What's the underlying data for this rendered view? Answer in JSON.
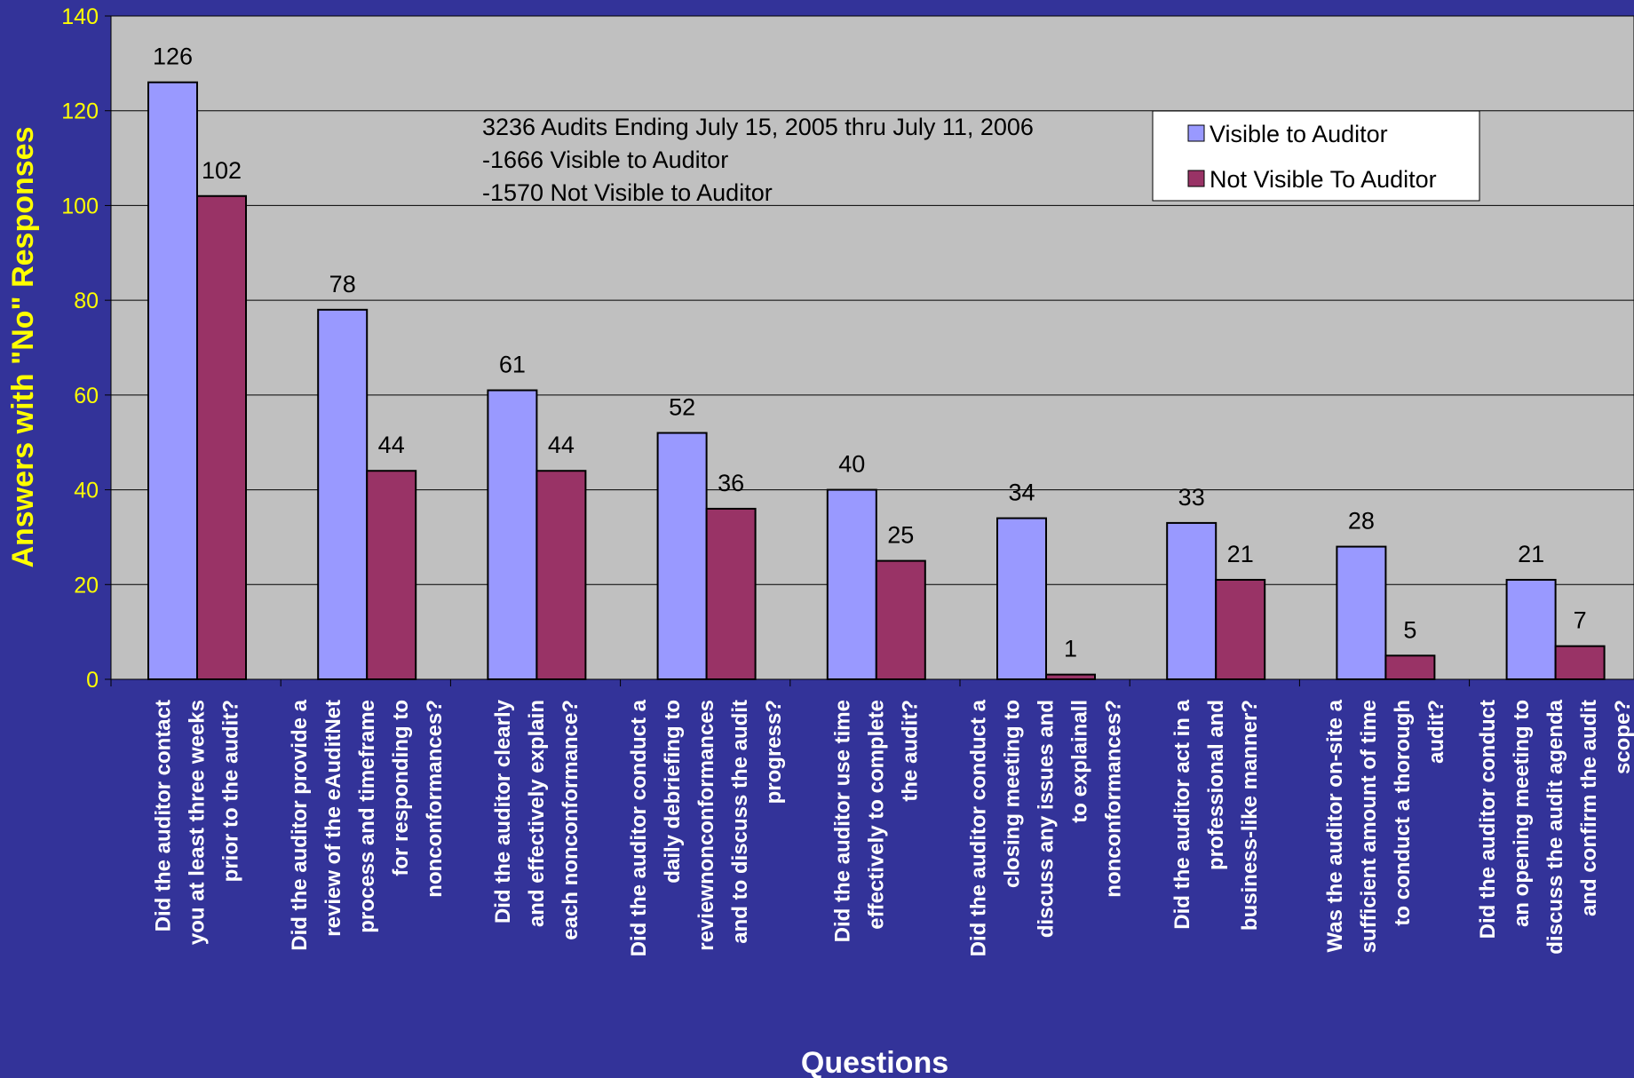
{
  "chart_data": {
    "type": "bar",
    "ylabel": "Answers with \"No\" Responses",
    "xlabel": "Questions",
    "ylim": [
      0,
      140
    ],
    "yticks": [
      0,
      20,
      40,
      60,
      80,
      100,
      120,
      140
    ],
    "grid": true,
    "legend_position": "top-right",
    "categories": [
      "Did the auditor contact you at least three weeks prior to the audit?",
      "Did the auditor provide a review of the eAuditNet process and timeframe for responding to nonconformances?",
      "Did the auditor clearly and effectively explain each nonconformance?",
      "Did the auditor conduct a daily debriefing to reviewnonconformances and to discuss the audit progress?",
      "Did the auditor use time effectively to complete the audit?",
      "Did the auditor conduct a closing meeting to discuss any issues and to explainall nonconformances?",
      "Did the auditor act in a professional and business-like manner?",
      "Was the auditor on-site a sufficient amount of time to conduct a thorough audit?",
      "Did the auditor conduct an opening meeting to discuss the audit agenda and confirm the audit scope?"
    ],
    "category_lines": [
      [
        "Did the auditor contact",
        "you at least three weeks",
        "prior to the audit?"
      ],
      [
        "Did the auditor provide a",
        "review of the eAuditNet",
        "process and timeframe",
        "for responding to",
        "nonconformances?"
      ],
      [
        "Did the auditor clearly",
        "and effectively explain",
        "each nonconformance?"
      ],
      [
        "Did the auditor conduct a",
        "daily debriefing to",
        "reviewnonconformances",
        "and to discuss the audit",
        "progress?"
      ],
      [
        "Did the auditor use time",
        "effectively to complete",
        "the audit?"
      ],
      [
        "Did the auditor conduct a",
        "closing meeting to",
        "discuss any issues and",
        "to explainall",
        "nonconformances?"
      ],
      [
        "Did the auditor act in a",
        "professional and",
        "business-like manner?"
      ],
      [
        "Was the auditor on-site a",
        "sufficient amount of time",
        "to conduct a thorough",
        "audit?"
      ],
      [
        "Did the auditor conduct",
        "an opening meeting to",
        "discuss the audit agenda",
        "and confirm the audit",
        "scope?"
      ]
    ],
    "series": [
      {
        "name": "Visible to Auditor",
        "color": "#9999FF",
        "values": [
          126,
          78,
          61,
          52,
          40,
          34,
          33,
          28,
          21
        ]
      },
      {
        "name": "Not Visible To Auditor",
        "color": "#993366",
        "values": [
          102,
          44,
          44,
          36,
          25,
          1,
          21,
          5,
          7
        ]
      }
    ],
    "annotation": [
      "3236 Audits Ending July 15, 2005 thru July 11, 2006",
      "-1666 Visible to Auditor",
      "-1570 Not Visible to Auditor"
    ],
    "colors": {
      "background": "#333399",
      "plot_area": "#C0C0C0",
      "axis_text": "#FFFF00",
      "title_text": "#FFFFFF"
    }
  }
}
